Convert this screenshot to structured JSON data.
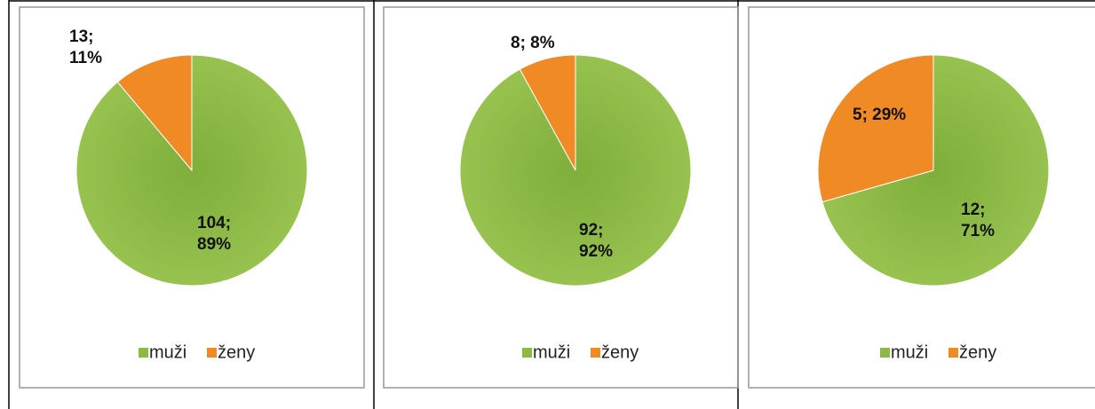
{
  "chart_data": [
    {
      "type": "pie",
      "categories": [
        "muži",
        "ženy"
      ],
      "values": [
        104,
        13
      ],
      "value_labels": [
        "104; 89%",
        "13; 11%"
      ],
      "colors": [
        "#8cbb44",
        "#f08a24"
      ],
      "legend": "bottom"
    },
    {
      "type": "pie",
      "categories": [
        "muži",
        "ženy"
      ],
      "values": [
        92,
        8
      ],
      "value_labels": [
        "92; 92%",
        "8; 8%"
      ],
      "colors": [
        "#8cbb44",
        "#f08a24"
      ],
      "legend": "bottom"
    },
    {
      "type": "pie",
      "categories": [
        "muži",
        "ženy"
      ],
      "values": [
        12,
        5
      ],
      "value_labels": [
        "12; 71%",
        "5; 29%"
      ],
      "colors": [
        "#8cbb44",
        "#f08a24"
      ],
      "legend": "bottom"
    }
  ]
}
